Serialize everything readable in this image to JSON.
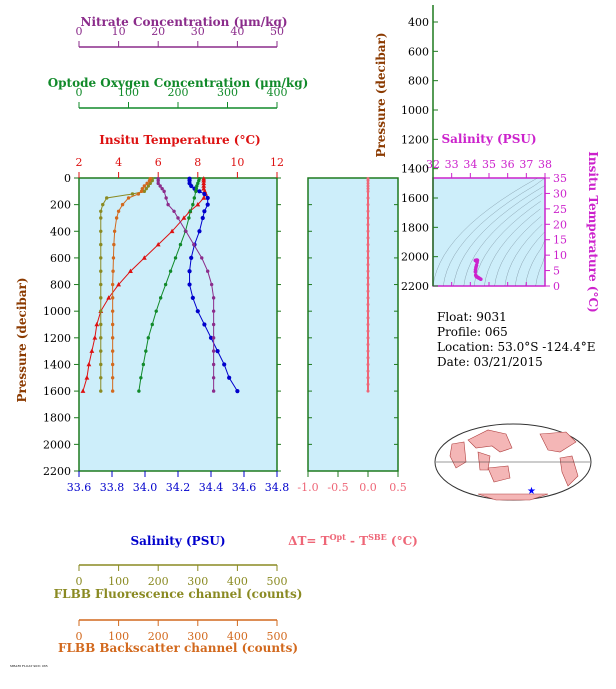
{
  "colors": {
    "nitrate": "#8b2c8b",
    "oxygen": "#118a2a",
    "temperature": "#dd1111",
    "salinity": "#0000cc",
    "fluorescence": "#8a8a22",
    "backscatter": "#d2691e",
    "delta_t": "#ee6677",
    "pressure_axis": "#1f7a1f",
    "pressure_label": "#8b3a00",
    "inset": "#cc22cc",
    "plot_bg": "#cdeefa"
  },
  "info": {
    "float": "Float:  9031",
    "profile": "Profile:  065",
    "location": "Location:  53.0°S  -124.4°E",
    "date": "Date:  03/21/2015"
  },
  "footnote": "MBARI FLOAT 9031 065",
  "chart_data": [
    {
      "type": "line",
      "id": "main-profile",
      "ylabel": "Pressure (decibar)",
      "ylim": [
        2200,
        0
      ],
      "yticks": [
        "0",
        "200",
        "400",
        "600",
        "800",
        "1000",
        "1200",
        "1400",
        "1600",
        "1800",
        "2000",
        "2200"
      ],
      "grid": false,
      "axes": {
        "nitrate": {
          "label": "Nitrate Concentration (μm/kg)",
          "range": [
            0,
            50
          ],
          "ticks": [
            "0",
            "10",
            "20",
            "30",
            "40",
            "50"
          ]
        },
        "oxygen": {
          "label": "Optode Oxygen Concentration (μm/kg)",
          "range": [
            0,
            400
          ],
          "ticks": [
            "0",
            "100",
            "200",
            "300",
            "400"
          ]
        },
        "temperature": {
          "label": "Insitu Temperature (°C)",
          "range": [
            2,
            12
          ],
          "ticks": [
            "2",
            "4",
            "6",
            "8",
            "10",
            "12"
          ]
        },
        "salinity": {
          "label": "Salinity (PSU)",
          "range": [
            33.6,
            34.8
          ],
          "ticks": [
            "33.6",
            "33.8",
            "34.0",
            "34.2",
            "34.4",
            "34.6",
            "34.8"
          ]
        },
        "fluorescence": {
          "label": "FLBB Fluorescence channel (counts)",
          "range": [
            0,
            500
          ],
          "ticks": [
            "0",
            "100",
            "200",
            "300",
            "400",
            "500"
          ]
        },
        "backscatter": {
          "label": "FLBB Backscatter channel (counts)",
          "range": [
            0,
            500
          ],
          "ticks": [
            "0",
            "100",
            "200",
            "300",
            "400",
            "500"
          ]
        }
      },
      "series": [
        {
          "axis": "temperature",
          "pressure": [
            5,
            20,
            40,
            60,
            80,
            100,
            120,
            150,
            200,
            250,
            300,
            400,
            500,
            600,
            700,
            800,
            900,
            1000,
            1100,
            1200,
            1300,
            1400,
            1500,
            1600
          ],
          "values": [
            8.3,
            8.3,
            8.3,
            8.3,
            8.3,
            8.35,
            8.4,
            8.3,
            8.0,
            7.6,
            7.3,
            6.7,
            6.0,
            5.3,
            4.6,
            4.0,
            3.5,
            3.1,
            2.9,
            2.8,
            2.65,
            2.5,
            2.4,
            2.2
          ]
        },
        {
          "axis": "salinity",
          "pressure": [
            5,
            20,
            40,
            60,
            80,
            100,
            120,
            150,
            200,
            250,
            300,
            400,
            500,
            600,
            700,
            800,
            900,
            1000,
            1100,
            1200,
            1300,
            1400,
            1500,
            1600
          ],
          "values": [
            34.27,
            34.27,
            34.27,
            34.28,
            34.3,
            34.33,
            34.36,
            34.38,
            34.38,
            34.36,
            34.35,
            34.33,
            34.3,
            34.28,
            34.27,
            34.27,
            34.29,
            34.32,
            34.36,
            34.4,
            34.44,
            34.48,
            34.51,
            34.56
          ]
        },
        {
          "axis": "oxygen",
          "pressure": [
            5,
            20,
            40,
            60,
            80,
            100,
            150,
            200,
            250,
            300,
            400,
            500,
            600,
            700,
            800,
            900,
            1000,
            1100,
            1200,
            1300,
            1400,
            1500,
            1600
          ],
          "values": [
            243,
            242,
            240,
            238,
            237,
            236,
            233,
            230,
            225,
            222,
            215,
            205,
            195,
            185,
            175,
            165,
            156,
            148,
            140,
            135,
            130,
            125,
            121
          ]
        },
        {
          "axis": "nitrate",
          "pressure": [
            5,
            20,
            40,
            60,
            80,
            100,
            150,
            200,
            250,
            300,
            400,
            500,
            600,
            700,
            800,
            900,
            1000,
            1100,
            1200,
            1300,
            1400,
            1500,
            1600
          ],
          "values": [
            20,
            20,
            20,
            20.5,
            21,
            21.5,
            22,
            22.5,
            24,
            25,
            27,
            29,
            31,
            32.5,
            33.5,
            34,
            34,
            34,
            34,
            34,
            34,
            34,
            34
          ]
        },
        {
          "axis": "fluorescence",
          "pressure": [
            5,
            20,
            40,
            60,
            80,
            100,
            120,
            150,
            200,
            250,
            300,
            400,
            500,
            600,
            700,
            800,
            900,
            1000,
            1100,
            1200,
            1300,
            1400,
            1500,
            1600
          ],
          "values": [
            185,
            185,
            180,
            175,
            170,
            165,
            135,
            70,
            60,
            55,
            55,
            55,
            55,
            55,
            55,
            55,
            55,
            55,
            55,
            55,
            55,
            55,
            55,
            55
          ]
        },
        {
          "axis": "backscatter",
          "pressure": [
            5,
            20,
            40,
            60,
            80,
            100,
            120,
            150,
            200,
            250,
            300,
            400,
            500,
            600,
            700,
            800,
            900,
            1000,
            1100,
            1200,
            1300,
            1400,
            1500,
            1600
          ],
          "values": [
            180,
            178,
            172,
            165,
            160,
            158,
            150,
            125,
            110,
            100,
            95,
            90,
            88,
            87,
            86,
            85,
            85,
            85,
            85,
            85,
            85,
            85,
            85,
            85
          ]
        }
      ]
    },
    {
      "type": "line",
      "id": "delta-t",
      "xlabel": "ΔT= T^Opt - T^SBE (°C)",
      "xlim": [
        -1.0,
        0.5
      ],
      "xticks": [
        "-1.0",
        "-0.5",
        "0.0",
        "0.5"
      ],
      "ylim": [
        2200,
        0
      ],
      "series": [
        {
          "name": "ΔT",
          "pressure": [
            5,
            20,
            40,
            60,
            80,
            100,
            150,
            200,
            250,
            300,
            350,
            400,
            450,
            500,
            550,
            600,
            650,
            700,
            750,
            800,
            850,
            900,
            950,
            1000,
            1050,
            1100,
            1150,
            1200,
            1250,
            1300,
            1350,
            1400,
            1450,
            1500,
            1550,
            1600
          ],
          "values": [
            0.0,
            0.0,
            0.0,
            0.0,
            0.0,
            0.0,
            0.0,
            0.0,
            0.0,
            0.0,
            0.0,
            0.0,
            0.0,
            0.0,
            0.0,
            0.0,
            0.0,
            0.0,
            0.0,
            0.0,
            0.0,
            0.0,
            0.0,
            0.0,
            0.0,
            0.0,
            0.0,
            0.0,
            0.0,
            0.0,
            0.0,
            0.0,
            0.0,
            0.0,
            0.0,
            0.0
          ]
        }
      ]
    },
    {
      "type": "scatter",
      "id": "ts-inset",
      "xlabel": "Salinity (PSU)",
      "ylabel": "Insitu Temperature (°C)",
      "xlim": [
        32,
        38
      ],
      "ylim": [
        0,
        35
      ],
      "xticks": [
        "32",
        "33",
        "34",
        "35",
        "36",
        "37",
        "38"
      ],
      "yticks": [
        "0",
        "5",
        "10",
        "15",
        "20",
        "25",
        "30",
        "35"
      ],
      "pressure_axis": {
        "label": "Pressure (decibar)",
        "range": [
          2200,
          200
        ],
        "ticks": [
          "400",
          "600",
          "800",
          "1000",
          "1200",
          "1400",
          "1600",
          "1800",
          "2000",
          "2200"
        ]
      },
      "points": {
        "salinity": [
          34.27,
          34.28,
          34.3,
          34.33,
          34.36,
          34.38,
          34.36,
          34.33,
          34.3,
          34.28,
          34.27,
          34.29,
          34.32,
          34.36,
          34.4,
          34.44,
          34.48,
          34.56
        ],
        "temperature": [
          8.3,
          8.3,
          8.3,
          8.35,
          8.4,
          8.3,
          7.6,
          6.7,
          6.0,
          5.3,
          4.6,
          3.5,
          3.1,
          2.9,
          2.8,
          2.65,
          2.5,
          2.2
        ]
      }
    }
  ]
}
